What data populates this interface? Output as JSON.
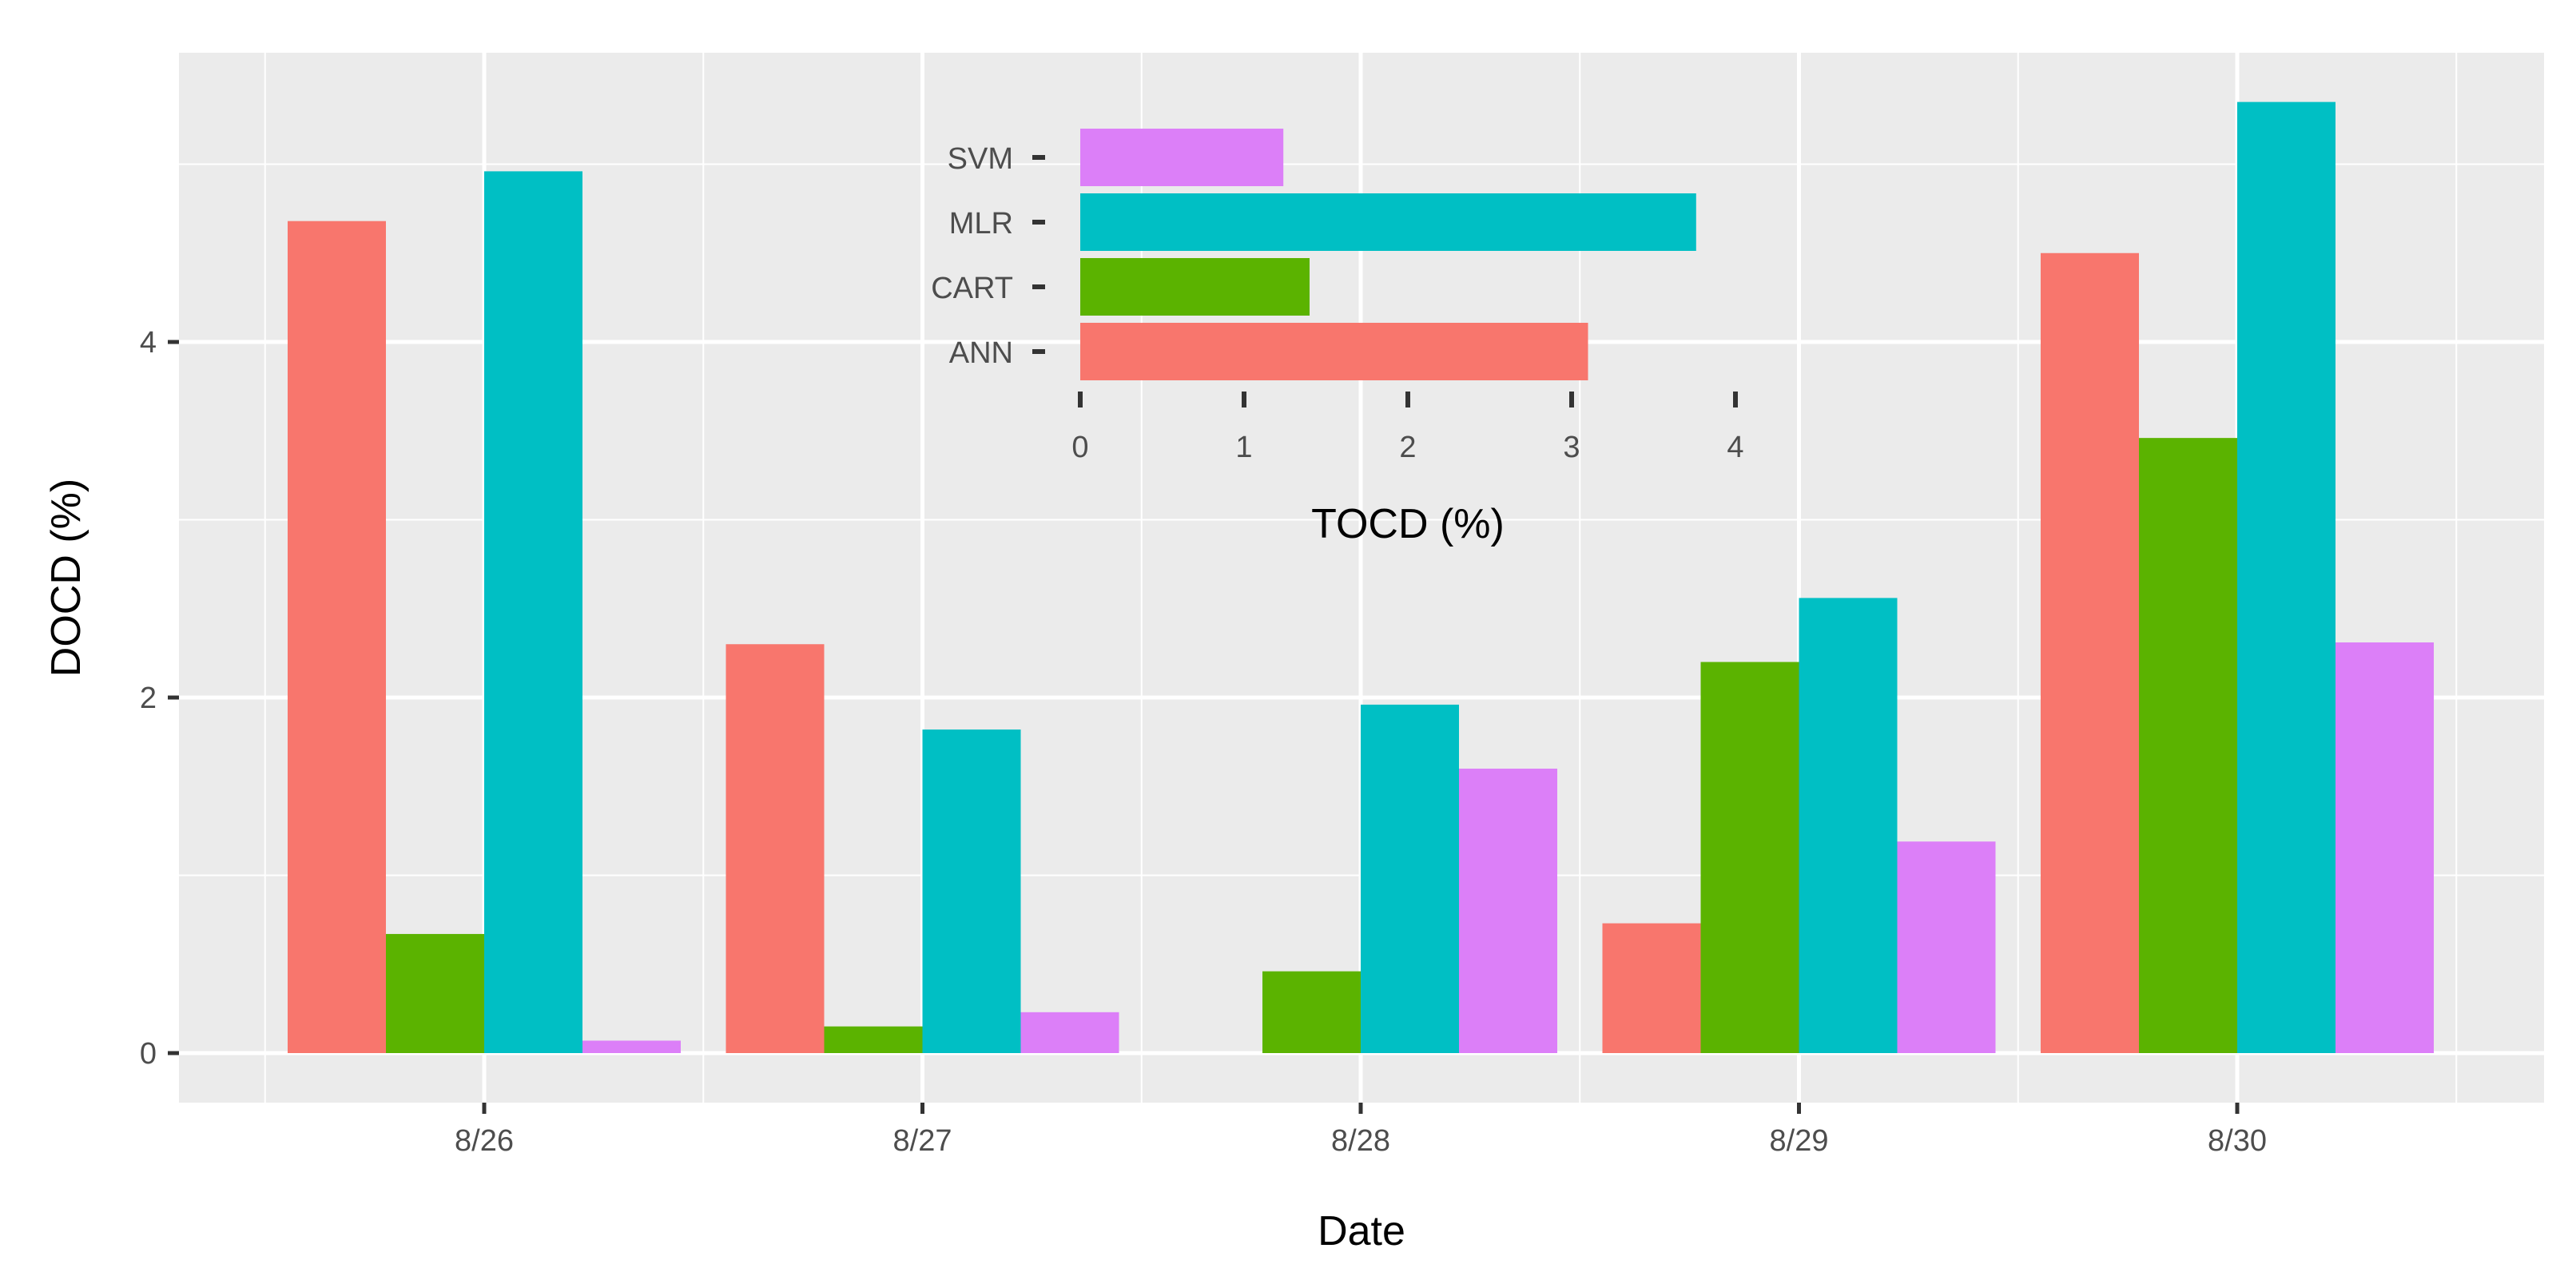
{
  "chart_data": [
    {
      "type": "bar",
      "title": "",
      "xlabel": "Date",
      "ylabel": "DOCD (%)",
      "categories": [
        "8/26",
        "8/27",
        "8/28",
        "8/29",
        "8/30"
      ],
      "yticks": [
        "0",
        "2",
        "4"
      ],
      "ylim": [
        -0.3,
        5.7
      ],
      "grid": true,
      "legend": "none",
      "series": [
        {
          "name": "ANN",
          "color": "#F8766D",
          "values": [
            4.68,
            2.3,
            0.0,
            0.73,
            4.5
          ]
        },
        {
          "name": "CART",
          "color": "#5BB300",
          "values": [
            0.67,
            0.15,
            0.46,
            2.2,
            3.46
          ]
        },
        {
          "name": "MLR",
          "color": "#00BFC4",
          "values": [
            4.96,
            1.82,
            1.96,
            2.56,
            5.35
          ]
        },
        {
          "name": "SVM",
          "color": "#DC7FF8",
          "values": [
            0.07,
            0.23,
            1.6,
            1.19,
            2.31
          ]
        }
      ]
    },
    {
      "type": "bar",
      "orientation": "horizontal",
      "title": "",
      "xlabel": "TOCD (%)",
      "ylabel": "",
      "categories": [
        "SVM",
        "MLR",
        "CART",
        "ANN"
      ],
      "xticks": [
        "0",
        "1",
        "2",
        "3",
        "4"
      ],
      "xlim": [
        0,
        4
      ],
      "values": [
        1.24,
        3.76,
        1.4,
        3.1
      ],
      "colors": [
        "#DC7FF8",
        "#00BFC4",
        "#5BB300",
        "#F8766D"
      ]
    }
  ]
}
